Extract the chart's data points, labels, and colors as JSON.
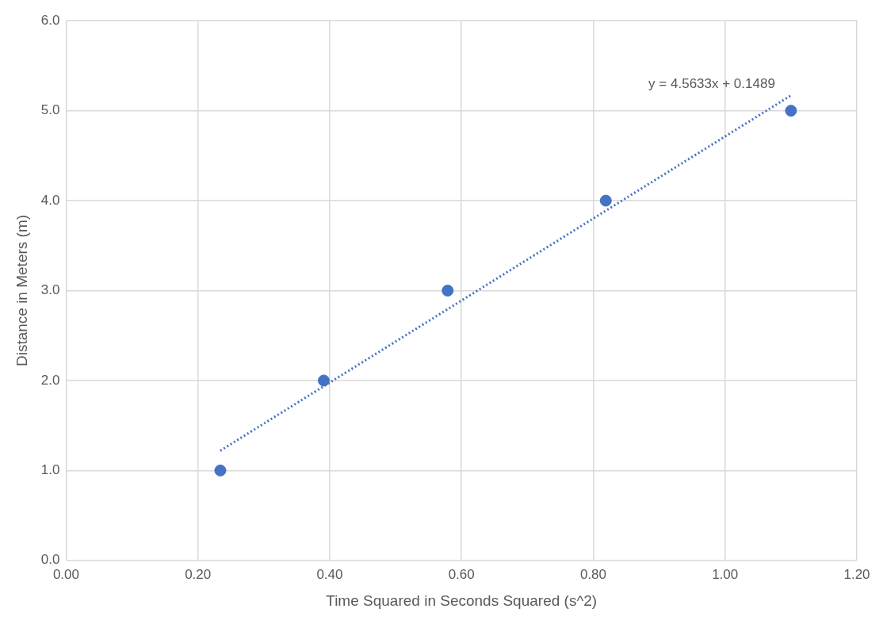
{
  "chart_data": {
    "type": "scatter",
    "xlabel": "Time Squared in Seconds Squared (s^2)",
    "ylabel": "Distance in Meters (m)",
    "x": [
      0.234,
      0.391,
      0.579,
      0.819,
      1.1
    ],
    "values": [
      1,
      2,
      3,
      4,
      5
    ],
    "color": "#4472c4",
    "marker": "circle",
    "series": [
      {
        "type": "line",
        "color": "#4472c4",
        "line_style": "dotted",
        "marker": "none",
        "x": [
          0.234,
          1.1
        ],
        "values": [
          1.22,
          5.17
        ]
      }
    ],
    "annotations": [
      "y = 4.5633x + 0.1489"
    ],
    "xlim": [
      0,
      1.2
    ],
    "ylim": [
      0,
      6
    ],
    "xticks": [
      {
        "value": 0,
        "label": "0.00"
      },
      {
        "value": 0.2,
        "label": "0.20"
      },
      {
        "value": 0.4,
        "label": "0.40"
      },
      {
        "value": 0.6,
        "label": "0.60"
      },
      {
        "value": 0.8,
        "label": "0.80"
      },
      {
        "value": 1,
        "label": "1.00"
      },
      {
        "value": 1.2,
        "label": "1.20"
      }
    ],
    "yticks": [
      {
        "value": 0,
        "label": "0.0"
      },
      {
        "value": 1,
        "label": "1.0"
      },
      {
        "value": 2,
        "label": "2.0"
      },
      {
        "value": 3,
        "label": "3.0"
      },
      {
        "value": 4,
        "label": "4.0"
      },
      {
        "value": 5,
        "label": "5.0"
      },
      {
        "value": 6,
        "label": "6.0"
      }
    ],
    "grid": true,
    "legend": false
  }
}
